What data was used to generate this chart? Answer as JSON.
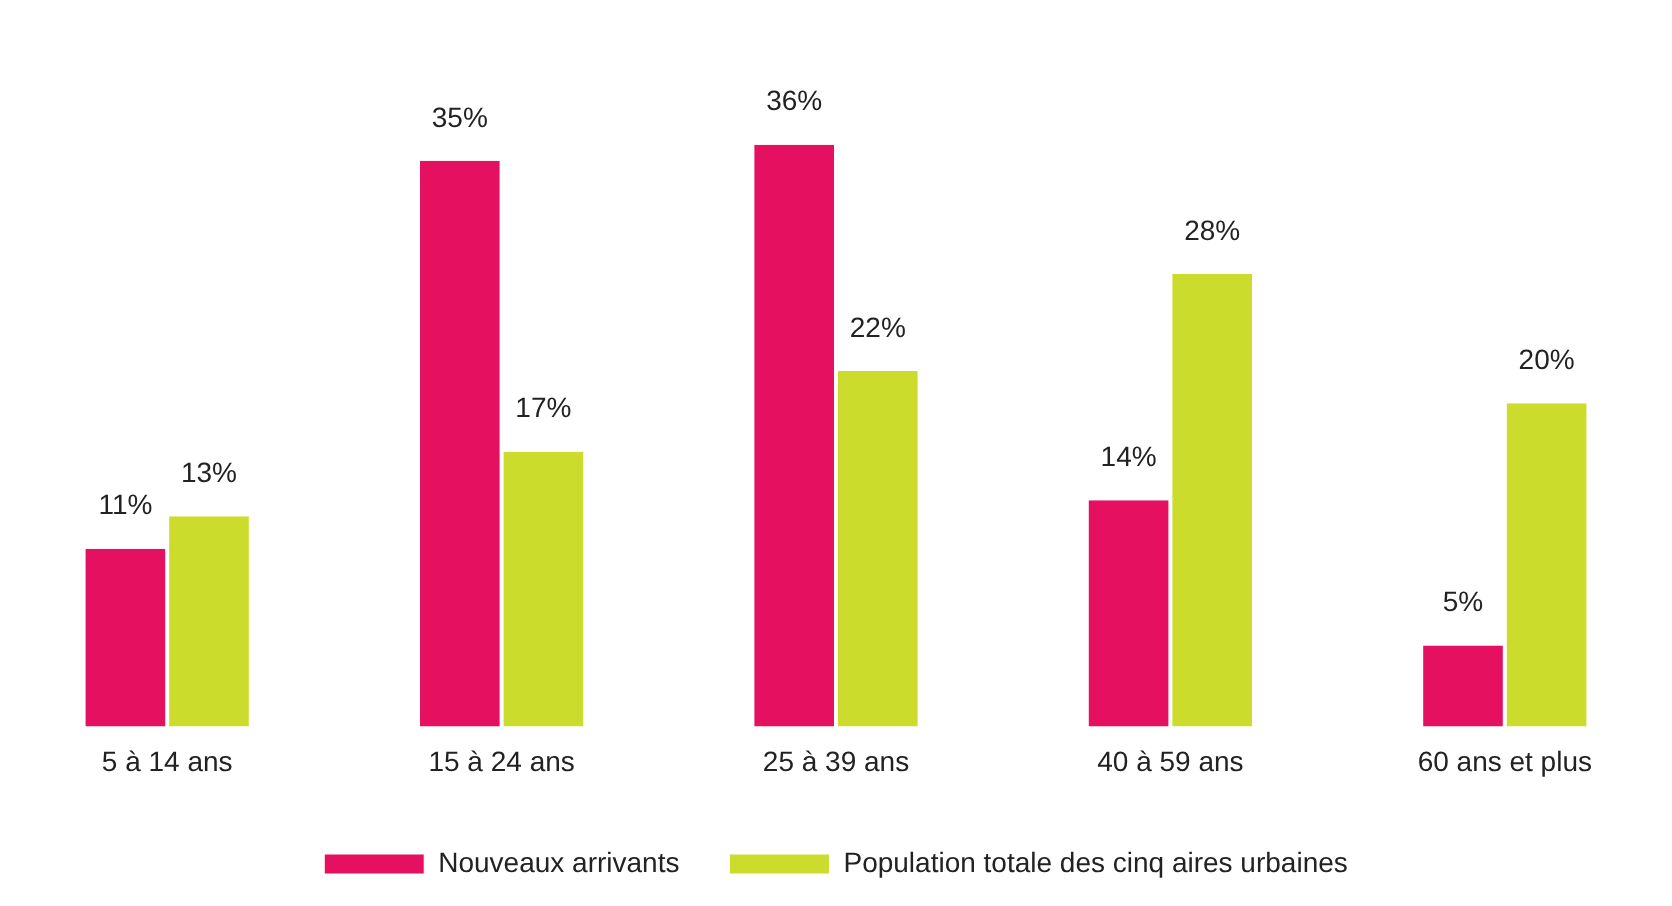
{
  "chart_data": {
    "type": "bar",
    "categories": [
      "5 à 14 ans",
      "15 à 24 ans",
      "25 à 39 ans",
      "40 à 59 ans",
      "60 ans et plus"
    ],
    "series": [
      {
        "name": "Nouveaux arrivants",
        "color": "#e5105f",
        "values": [
          11,
          35,
          36,
          14,
          5
        ],
        "value_labels": [
          "11%",
          "35%",
          "36%",
          "14%",
          "5%"
        ]
      },
      {
        "name": "Population totale des cinq aires urbaines",
        "color": "#cbdc2c",
        "values": [
          13,
          17,
          22,
          28,
          20
        ],
        "value_labels": [
          "13%",
          "17%",
          "22%",
          "28%",
          "20%"
        ]
      }
    ],
    "legend": "bottom",
    "grid": false
  }
}
